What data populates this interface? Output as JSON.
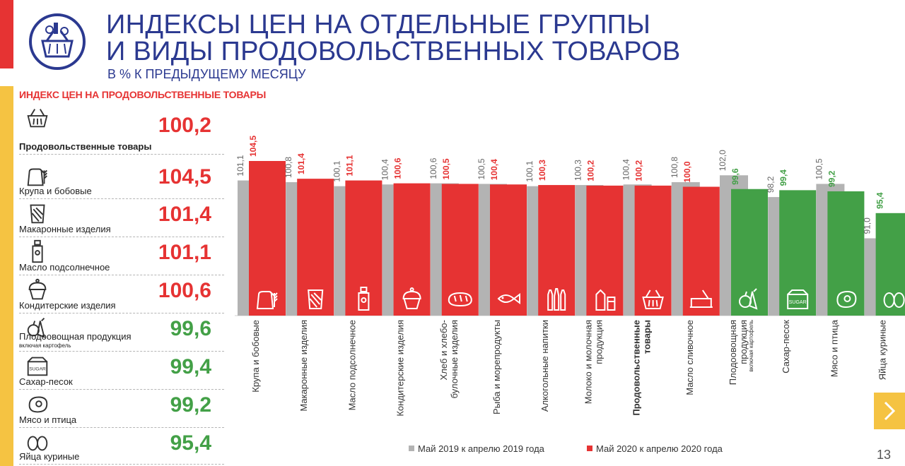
{
  "slide": {
    "title_line1": "ИНДЕКСЫ ЦЕН НА ОТДЕЛЬНЫЕ ГРУППЫ",
    "title_line2": "И ВИДЫ ПРОДОВОЛЬСТВЕННЫХ ТОВАРОВ",
    "subtitle": "В % К ПРЕДЫДУЩЕМУ МЕСЯЦУ",
    "page_number": "13"
  },
  "colors": {
    "accent_red": "#e63333",
    "accent_green": "#43a047",
    "gray": "#b3b3b3",
    "brand_blue": "#2b3990",
    "yellow": "#f5c342"
  },
  "left_panel": {
    "heading": "ИНДЕКС ЦЕН НА ПРОДОВОЛЬСТВЕННЫЕ ТОВАРЫ",
    "items": [
      {
        "label": "Продовольственные товары",
        "value": "100,2",
        "color": "red",
        "icon": "basket-icon",
        "bold": true
      },
      {
        "label": "Крупа и бобовые",
        "value": "104,5",
        "color": "red",
        "icon": "grain-sack-icon"
      },
      {
        "label": "Макаронные изделия",
        "value": "101,4",
        "color": "red",
        "icon": "pasta-pack-icon"
      },
      {
        "label": "Масло подсолнечное",
        "value": "101,1",
        "color": "red",
        "icon": "oil-bottle-icon"
      },
      {
        "label": "Кондитерские изделия",
        "value": "100,6",
        "color": "red",
        "icon": "cupcake-icon"
      },
      {
        "label": "Плодоовощная продукция",
        "sublabel": "включая картофель",
        "value": "99,6",
        "color": "green",
        "icon": "vegetables-icon"
      },
      {
        "label": "Сахар-песок",
        "value": "99,4",
        "color": "green",
        "icon": "sugar-box-icon"
      },
      {
        "label": "Мясо и птица",
        "value": "99,2",
        "color": "green",
        "icon": "meat-icon"
      },
      {
        "label": "Яйца куриные",
        "value": "95,4",
        "color": "green",
        "icon": "eggs-icon"
      }
    ]
  },
  "chart_data": {
    "type": "bar",
    "categories": [
      {
        "label": "Крупа и бобовые",
        "icon": "grain-sack-icon"
      },
      {
        "label": "Макаронные изделия",
        "icon": "pasta-pack-icon"
      },
      {
        "label": "Масло подсолнечное",
        "icon": "oil-bottle-icon"
      },
      {
        "label": "Кондитерские изделия",
        "icon": "cupcake-icon"
      },
      {
        "label": "Хлеб и хлебо-булочные изделия",
        "lines": [
          "Хлеб и хлебо-",
          "булочные изделия"
        ],
        "icon": "bread-icon"
      },
      {
        "label": "Рыба и морепродукты",
        "icon": "fish-icon"
      },
      {
        "label": "Алкогольные напитки",
        "icon": "bottles-icon"
      },
      {
        "label": "Молоко и молочная продукция",
        "lines": [
          "Молоко и молочная",
          "продукция"
        ],
        "icon": "milk-icon"
      },
      {
        "label": "Продовольственные товары",
        "lines": [
          "Продовольственные",
          "товары"
        ],
        "bold": true,
        "icon": "basket-icon"
      },
      {
        "label": "Масло сливочное",
        "icon": "butter-icon"
      },
      {
        "label": "Плодоовощная продукция",
        "lines": [
          "Плодоовощная",
          "продукция"
        ],
        "sublabel": "включая картофель",
        "icon": "vegetables-icon"
      },
      {
        "label": "Сахар-песок",
        "icon": "sugar-box-icon"
      },
      {
        "label": "Мясо и птица",
        "icon": "meat-icon"
      },
      {
        "label": "Яйца куриные",
        "icon": "eggs-icon"
      }
    ],
    "series": [
      {
        "name": "Май 2019 к апрелю 2019 года",
        "color": "#b3b3b3",
        "values": [
          101.1,
          100.8,
          100.1,
          100.4,
          100.6,
          100.5,
          100.1,
          100.3,
          100.4,
          100.8,
          102.0,
          98.2,
          100.5,
          91.0
        ]
      },
      {
        "name": "Май 2020 к апрелю 2020 года",
        "color": "#e63333",
        "values": [
          104.5,
          101.4,
          101.1,
          100.6,
          100.5,
          100.4,
          100.3,
          100.2,
          100.2,
          100.0,
          99.6,
          99.4,
          99.2,
          95.4
        ]
      }
    ],
    "value_labels_2019": [
      "101,1",
      "100,8",
      "100,1",
      "100,4",
      "100,6",
      "100,5",
      "100,1",
      "100,3",
      "100,4",
      "100,8",
      "102,0",
      "98,2",
      "100,5",
      "91,0"
    ],
    "value_labels_2020": [
      "104,5",
      "101,4",
      "101,1",
      "100,6",
      "100,5",
      "100,4",
      "100,3",
      "100,2",
      "100,2",
      "100,0",
      "99,6",
      "99,4",
      "99,2",
      "95,4"
    ],
    "green_threshold": 100,
    "legend_placement": "bottom"
  }
}
